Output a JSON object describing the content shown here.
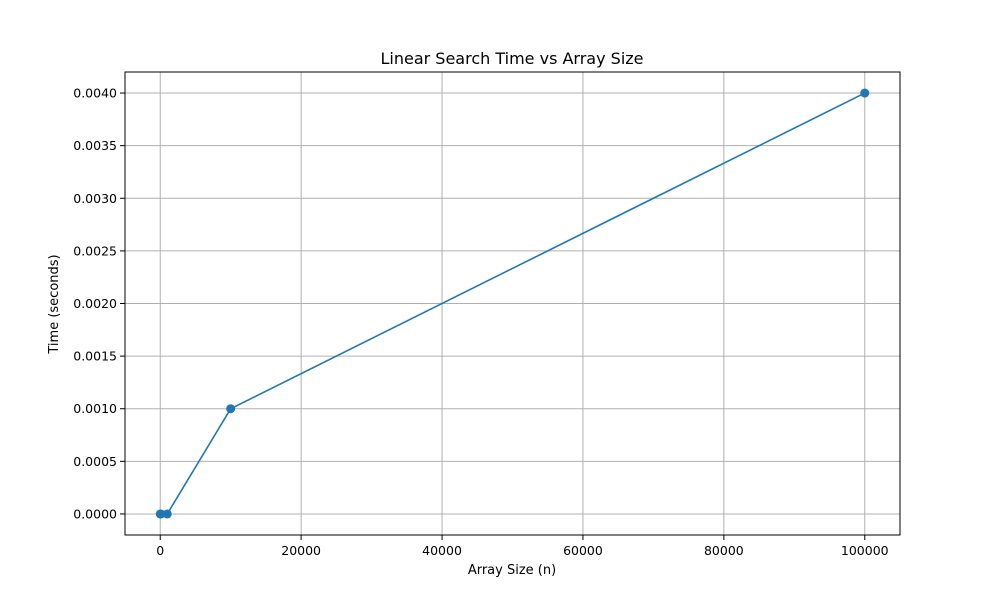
{
  "chart_data": {
    "type": "line",
    "title": "Linear Search Time vs Array Size",
    "xlabel": "Array Size (n)",
    "ylabel": "Time (seconds)",
    "x": [
      10,
      100,
      1000,
      10000,
      100000
    ],
    "series": [
      {
        "values": [
          0.0,
          0.0,
          0.0,
          0.001,
          0.004
        ]
      }
    ],
    "xlim": [
      -5000,
      105000
    ],
    "ylim": [
      -0.0002,
      0.0042
    ],
    "xticks": [
      0,
      20000,
      40000,
      60000,
      80000,
      100000
    ],
    "yticks": [
      0.0,
      0.0005,
      0.001,
      0.0015,
      0.002,
      0.0025,
      0.003,
      0.0035,
      0.004
    ],
    "xtick_labels": [
      "0",
      "20000",
      "40000",
      "60000",
      "80000",
      "100000"
    ],
    "ytick_labels": [
      "0.0000",
      "0.0005",
      "0.0010",
      "0.0015",
      "0.0020",
      "0.0025",
      "0.0030",
      "0.0035",
      "0.0040"
    ],
    "grid": true,
    "marker": "circle",
    "line_color": "#1f77b4"
  }
}
